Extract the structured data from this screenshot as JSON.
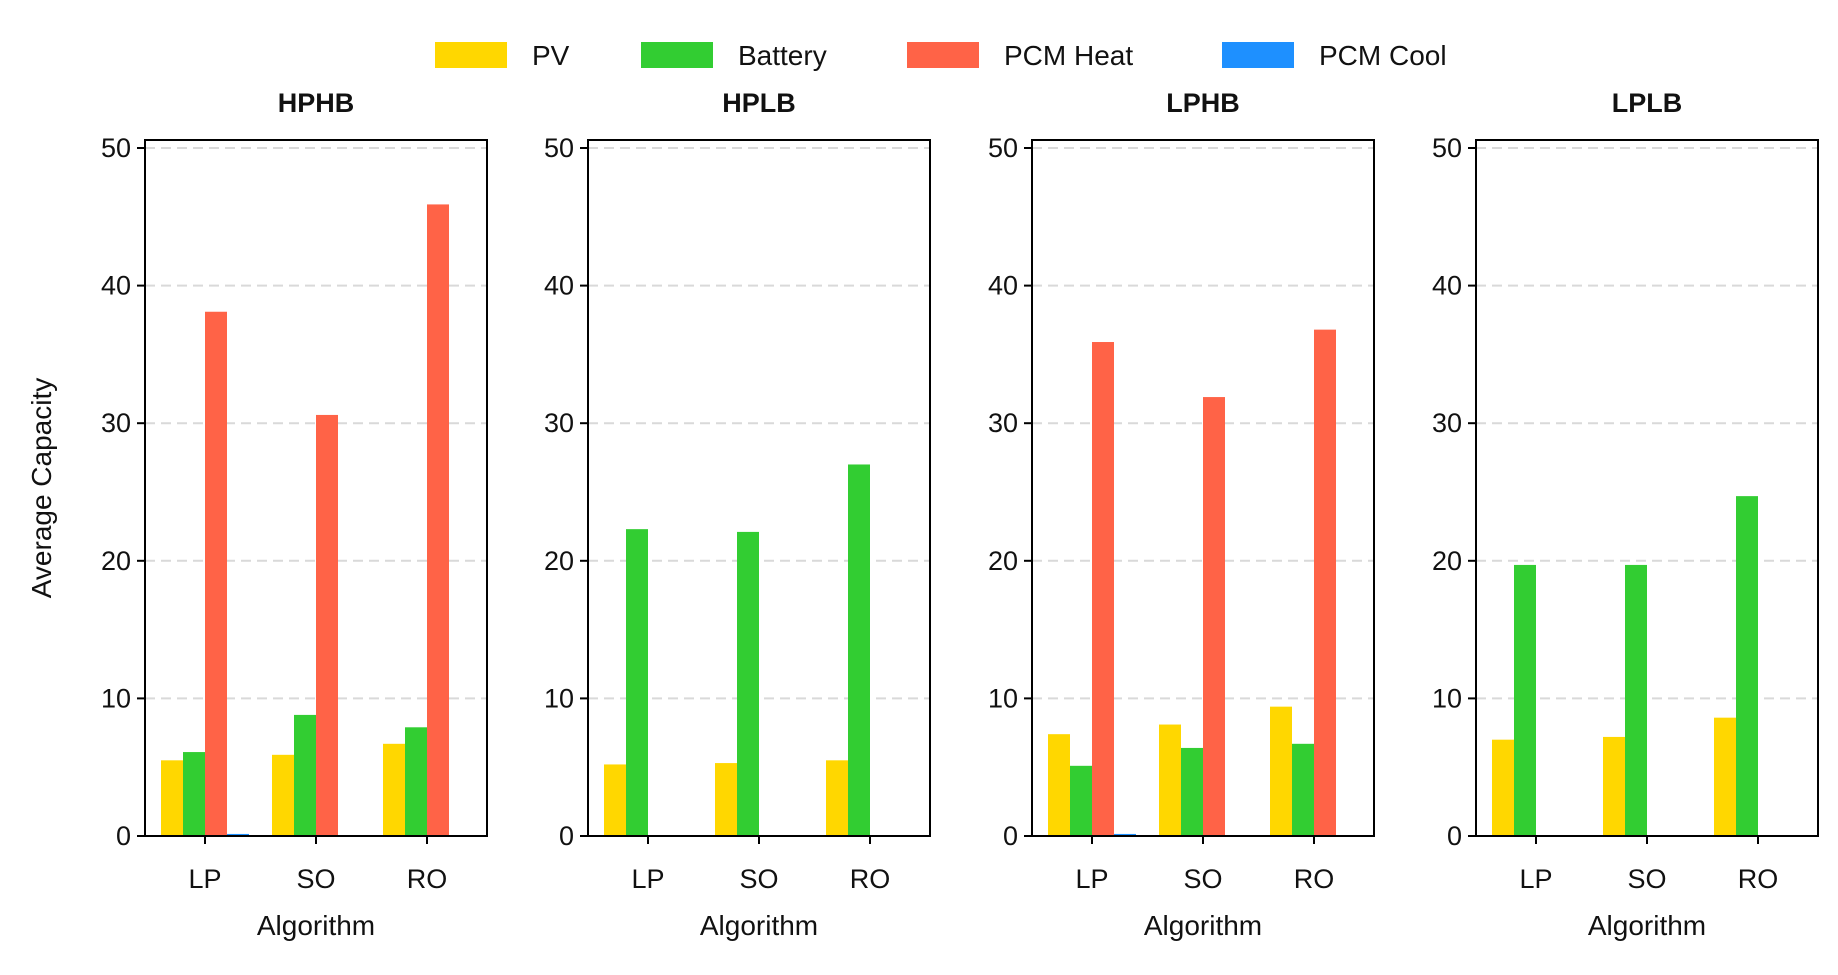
{
  "chart_data": {
    "type": "bar",
    "legend": {
      "placement": "top-center",
      "entries": [
        "PV",
        "Battery",
        "PCM Heat",
        "PCM Cool"
      ]
    },
    "colors": {
      "PV": "#FFD700",
      "Battery": "#32CD32",
      "PCM Heat": "#FF6347",
      "PCM Cool": "#1E90FF"
    },
    "ylabel": "Average Capacity",
    "xlabel": "Algorithm",
    "categories": [
      "LP",
      "SO",
      "RO"
    ],
    "ylim": [
      0,
      50
    ],
    "yticks": [
      0,
      10,
      20,
      30,
      40,
      50
    ],
    "grid": "horizontal dashed",
    "panels": [
      {
        "title": "HPHB",
        "series": [
          {
            "name": "PV",
            "values": [
              5.5,
              5.9,
              6.7
            ]
          },
          {
            "name": "Battery",
            "values": [
              6.1,
              8.8,
              7.9
            ]
          },
          {
            "name": "PCM Heat",
            "values": [
              38.1,
              30.6,
              45.9
            ]
          },
          {
            "name": "PCM Cool",
            "values": [
              0.15,
              0,
              0
            ]
          }
        ]
      },
      {
        "title": "HPLB",
        "series": [
          {
            "name": "PV",
            "values": [
              5.2,
              5.3,
              5.5
            ]
          },
          {
            "name": "Battery",
            "values": [
              22.3,
              22.1,
              27.0
            ]
          },
          {
            "name": "PCM Heat",
            "values": [
              0,
              0,
              0
            ]
          },
          {
            "name": "PCM Cool",
            "values": [
              0,
              0,
              0
            ]
          }
        ]
      },
      {
        "title": "LPHB",
        "series": [
          {
            "name": "PV",
            "values": [
              7.4,
              8.1,
              9.4
            ]
          },
          {
            "name": "Battery",
            "values": [
              5.1,
              6.4,
              6.7
            ]
          },
          {
            "name": "PCM Heat",
            "values": [
              35.9,
              31.9,
              36.8
            ]
          },
          {
            "name": "PCM Cool",
            "values": [
              0.15,
              0,
              0
            ]
          }
        ]
      },
      {
        "title": "LPLB",
        "series": [
          {
            "name": "PV",
            "values": [
              7.0,
              7.2,
              8.6
            ]
          },
          {
            "name": "Battery",
            "values": [
              19.7,
              19.7,
              24.7
            ]
          },
          {
            "name": "PCM Heat",
            "values": [
              0,
              0,
              0
            ]
          },
          {
            "name": "PCM Cool",
            "values": [
              0,
              0,
              0
            ]
          }
        ]
      }
    ]
  }
}
